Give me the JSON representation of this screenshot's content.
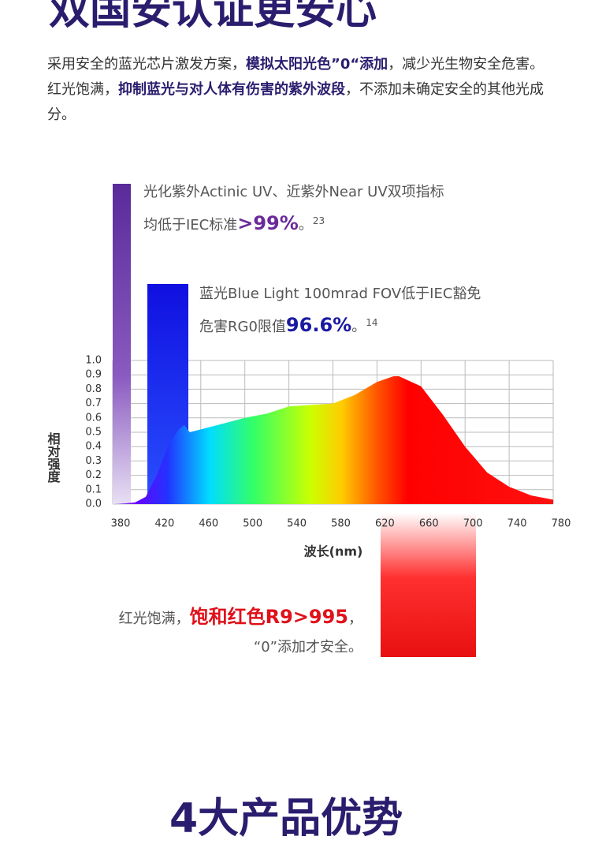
{
  "header": {
    "title": "双国安认证更安心"
  },
  "paragraph": [
    "采用安全的蓝光芯片激发方案，",
    "模拟太阳光色”0“添加",
    "，减少光生物安全危害。红光饱满，",
    "抑制蓝光与对人体有伤害的紫外波段",
    "，不添加未确定安全的其他光成分。"
  ],
  "chart_data": {
    "type": "area",
    "x": [
      380,
      400,
      410,
      420,
      430,
      440,
      445,
      450,
      460,
      480,
      500,
      520,
      540,
      560,
      580,
      600,
      620,
      635,
      640,
      660,
      680,
      700,
      720,
      740,
      760,
      780
    ],
    "series": [
      {
        "values": [
          0.0,
          0.01,
          0.05,
          0.2,
          0.4,
          0.52,
          0.55,
          0.5,
          0.52,
          0.56,
          0.6,
          0.63,
          0.68,
          0.69,
          0.7,
          0.76,
          0.85,
          0.89,
          0.89,
          0.82,
          0.62,
          0.4,
          0.22,
          0.12,
          0.06,
          0.03
        ]
      }
    ],
    "xlim": [
      380,
      780
    ],
    "xticks": [
      380,
      420,
      460,
      500,
      540,
      580,
      620,
      660,
      700,
      740,
      780
    ],
    "ylim": [
      0,
      1
    ],
    "yticks": [
      {
        "value": 0,
        "label": "0.0"
      },
      0.1,
      0.2,
      0.3,
      0.4,
      0.5,
      0.6,
      0.7,
      0.8,
      0.9,
      {
        "value": 1,
        "label": "1.0"
      }
    ],
    "grid": true,
    "x_label": "波长(nm)",
    "y_label": "相对强度",
    "annotations": [
      {
        "line1": "光化紫外Actinic UV、近紫外Near UV双项指标",
        "prefix": "均低于IEC标准",
        "highlight": ">99%",
        "suffix": "。",
        "note": "23"
      },
      {
        "line1": "蓝光Blue Light 100mrad FOV低于IEC豁免",
        "prefix": "危害RG0限值",
        "highlight": "96.6%",
        "suffix": "。",
        "note": "14"
      },
      {
        "prefix": "红光饱满，",
        "highlight": "饱和红色R9>995",
        "suffix": "，",
        "line2": "“0”添加才安全。"
      }
    ]
  },
  "footer": {
    "title": "4大产品优势"
  }
}
